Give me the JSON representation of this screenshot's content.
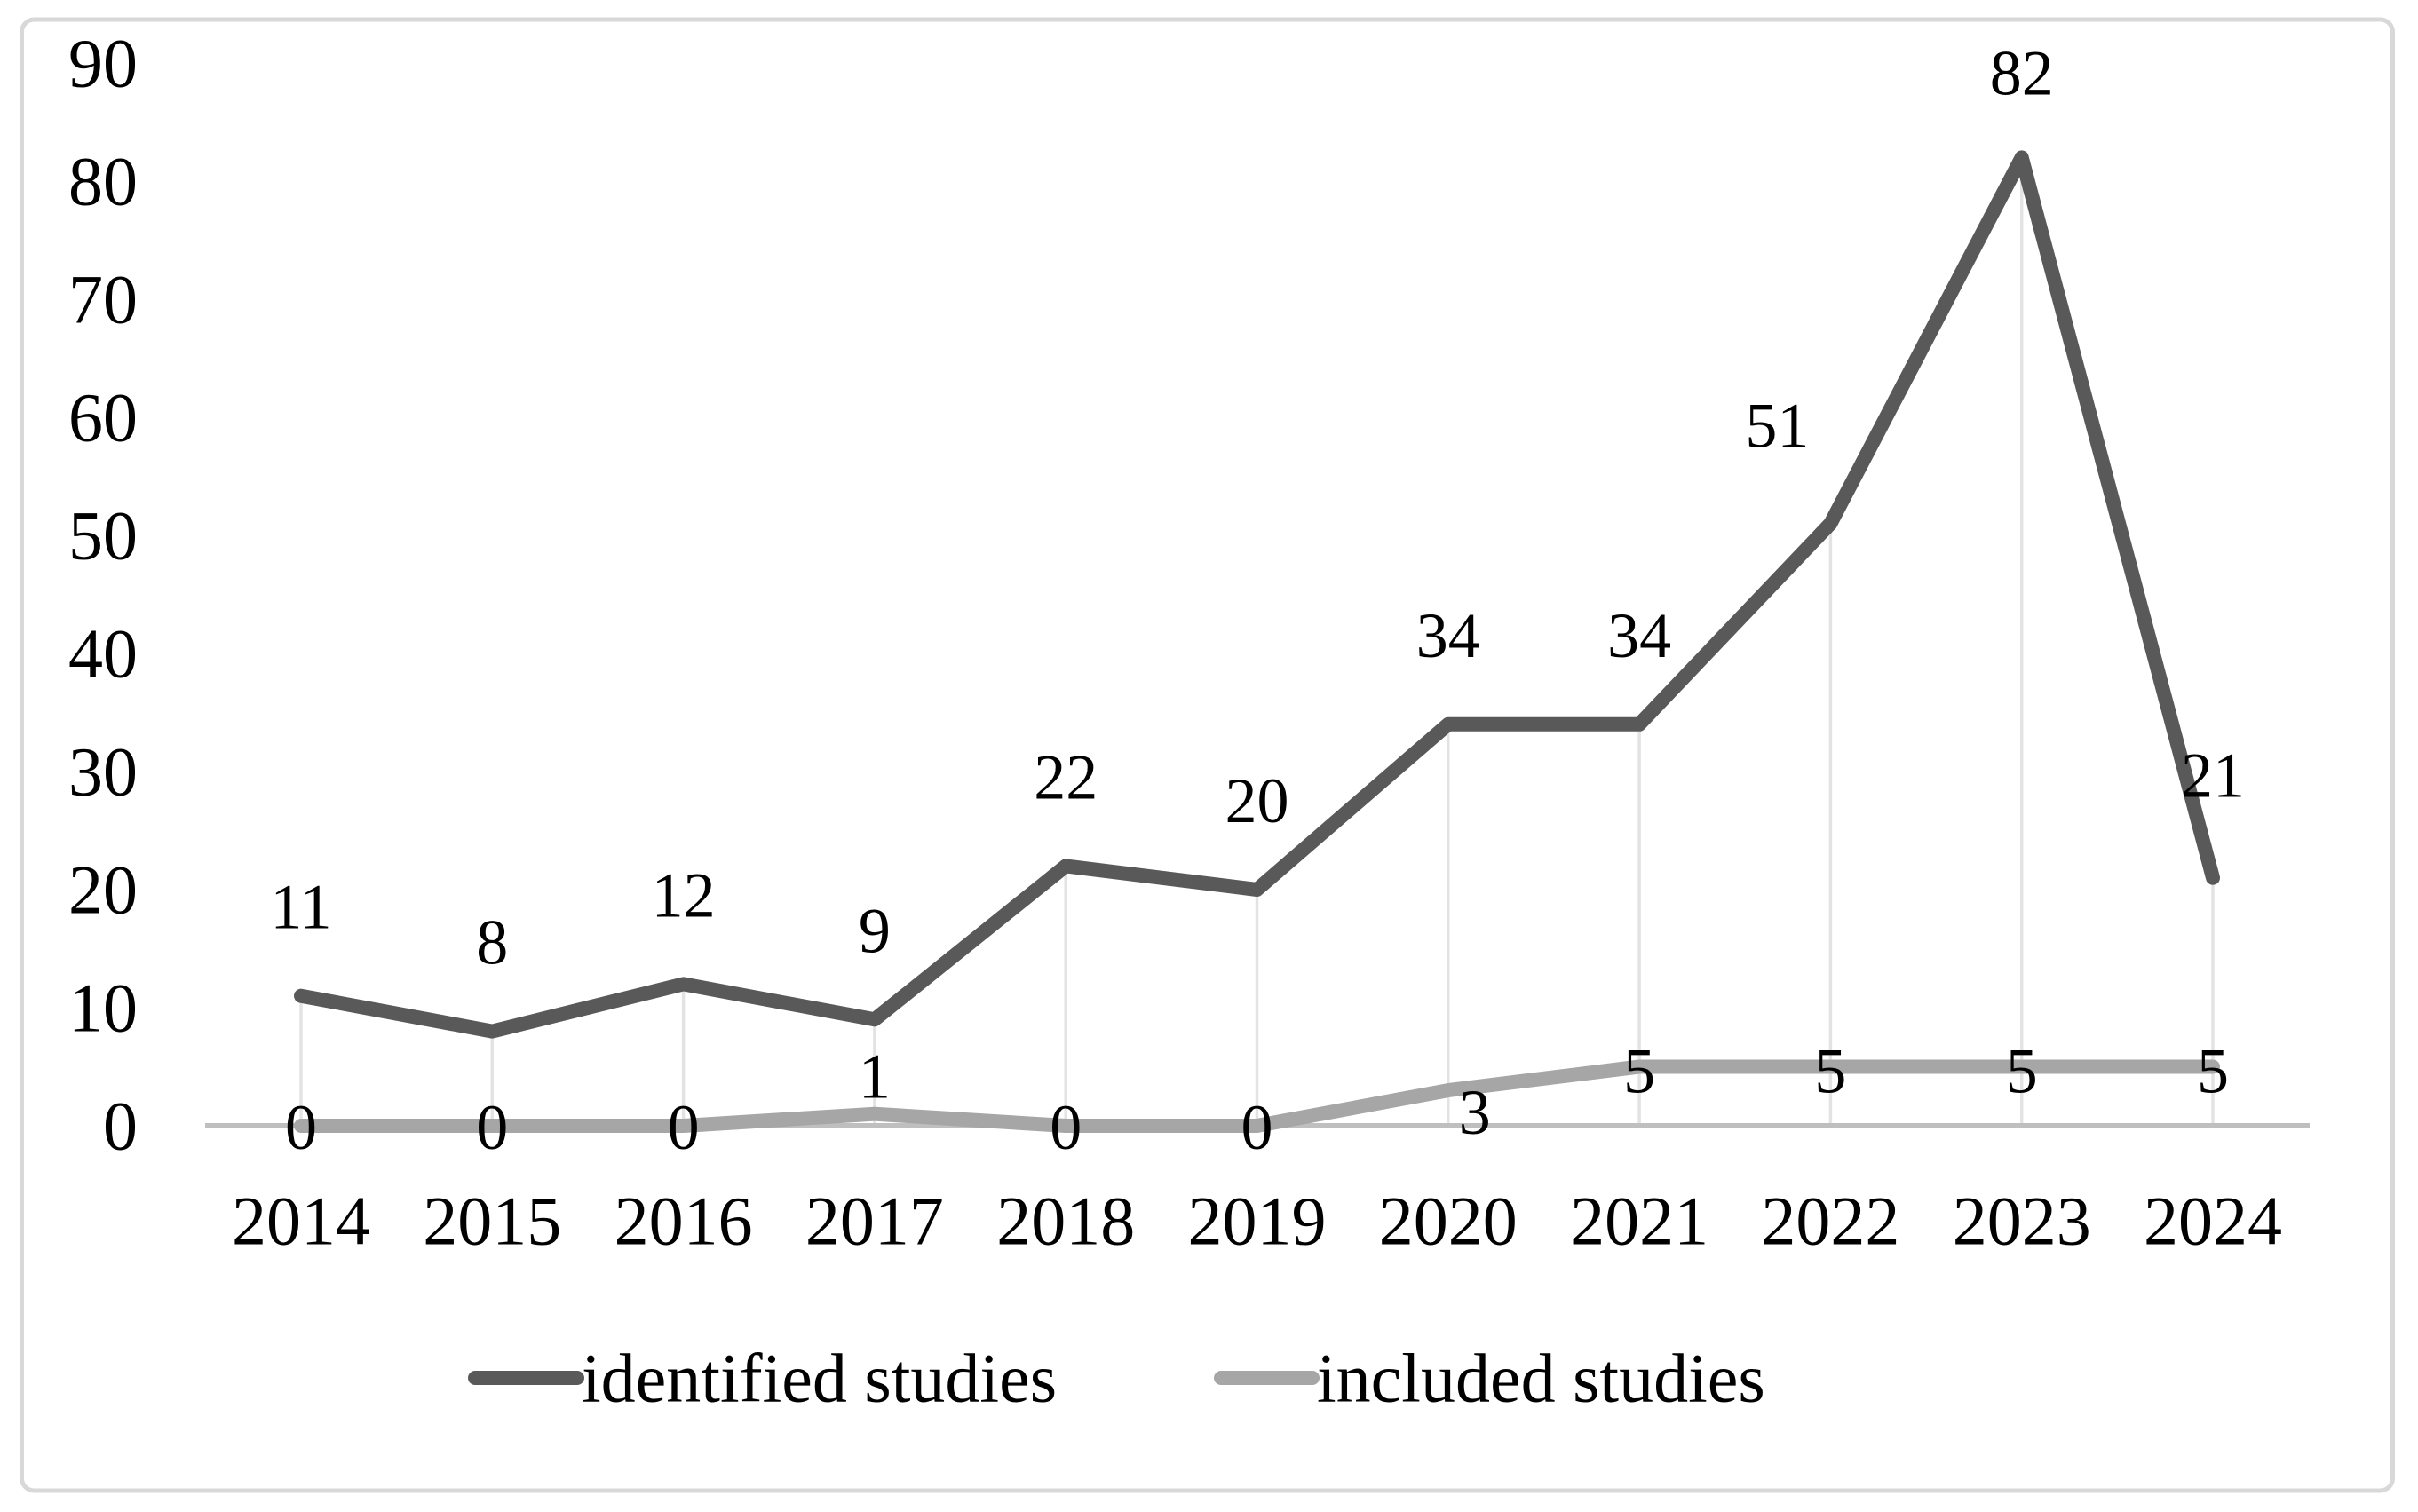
{
  "figure": {
    "background": "#ffffff",
    "border_color": "#d8d8d8",
    "text_color": "#000000",
    "axis_line_color": "#bfbfbf",
    "drop_line_color": "#e3e3e3"
  },
  "legend": {
    "items": [
      {
        "label": "identified studies",
        "color": "#595959"
      },
      {
        "label": "included studies",
        "color": "#a6a6a6"
      }
    ]
  },
  "chart_data": {
    "type": "line",
    "title": "",
    "xlabel": "",
    "ylabel": "",
    "categories": [
      "2014",
      "2015",
      "2016",
      "2017",
      "2018",
      "2019",
      "2020",
      "2021",
      "2022",
      "2023",
      "2024"
    ],
    "series": [
      {
        "name": "identified studies",
        "color": "#595959",
        "values": [
          11,
          8,
          12,
          9,
          22,
          20,
          34,
          34,
          51,
          82,
          21
        ],
        "data_labels": [
          "11",
          "8",
          "12",
          "9",
          "22",
          "20",
          "34",
          "34",
          "51",
          "82",
          "21"
        ],
        "label_offsets": [
          [
            0,
            -100
          ],
          [
            0,
            -100
          ],
          [
            0,
            -100
          ],
          [
            0,
            -100
          ],
          [
            0,
            -100
          ],
          [
            0,
            -100
          ],
          [
            0,
            -100
          ],
          [
            0,
            -100
          ],
          [
            -60,
            -110
          ],
          [
            0,
            -95
          ],
          [
            0,
            -115
          ]
        ]
      },
      {
        "name": "included studies",
        "color": "#a6a6a6",
        "values": [
          0,
          0,
          0,
          1,
          0,
          0,
          3,
          5,
          5,
          5,
          5
        ],
        "data_labels": [
          "0",
          "0",
          "0",
          "1",
          "0",
          "0",
          "3",
          "5",
          "5",
          "5",
          "5"
        ],
        "label_offsets": [
          [
            0,
            2
          ],
          [
            0,
            2
          ],
          [
            0,
            2
          ],
          [
            0,
            -42
          ],
          [
            0,
            2
          ],
          [
            0,
            2
          ],
          [
            30,
            25
          ],
          [
            0,
            5
          ],
          [
            0,
            5
          ],
          [
            0,
            5
          ],
          [
            0,
            5
          ]
        ]
      }
    ],
    "ylim": [
      0,
      90
    ],
    "yticks": [
      0,
      10,
      20,
      30,
      40,
      50,
      60,
      70,
      80,
      90
    ],
    "grid": "vertical drop lines from identified-studies points to x-axis",
    "legend_position": "bottom"
  }
}
